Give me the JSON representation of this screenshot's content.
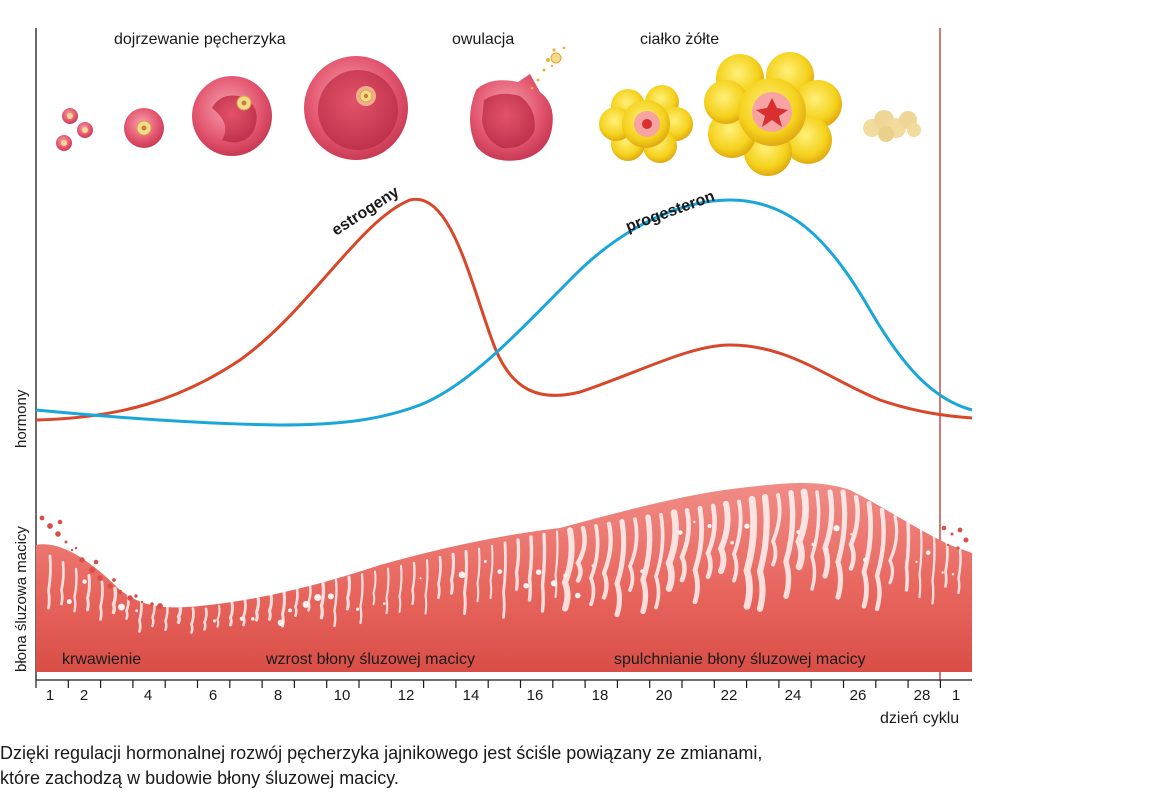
{
  "stage_labels": {
    "follicle_maturation": "dojrzewanie pęcherzyka",
    "ovulation": "owulacja",
    "corpus_luteum": "ciałko żółte"
  },
  "hormone_labels": {
    "estrogen": "estrogeny",
    "progesterone": "progesteron"
  },
  "axis_labels": {
    "hormones": "hormony",
    "endometrium": "błona śluzowa macicy",
    "x_axis": "dzień cyklu"
  },
  "phase_labels": {
    "bleeding": "krwawienie",
    "growth": "wzrost błony śluzowej macicy",
    "loosening": "spulchnianie błony śluzowej macicy"
  },
  "ticks": [
    "1",
    "2",
    "4",
    "6",
    "8",
    "10",
    "12",
    "14",
    "16",
    "18",
    "20",
    "22",
    "24",
    "26",
    "28",
    "1"
  ],
  "caption": [
    "Dzięki regulacji hormonalnej rozwój pęcherzyka jajnikowego jest ściśle powiązany ze zmianami,",
    "które zachodzą w budowie błony śluzowej macicy."
  ],
  "colors": {
    "estrogen": "#d9472b",
    "progesterone": "#1ba6da",
    "endometrium": "#e96a6a",
    "cycle_marker": "#b5362a",
    "corpus_luteum": "#f5d21d"
  }
}
